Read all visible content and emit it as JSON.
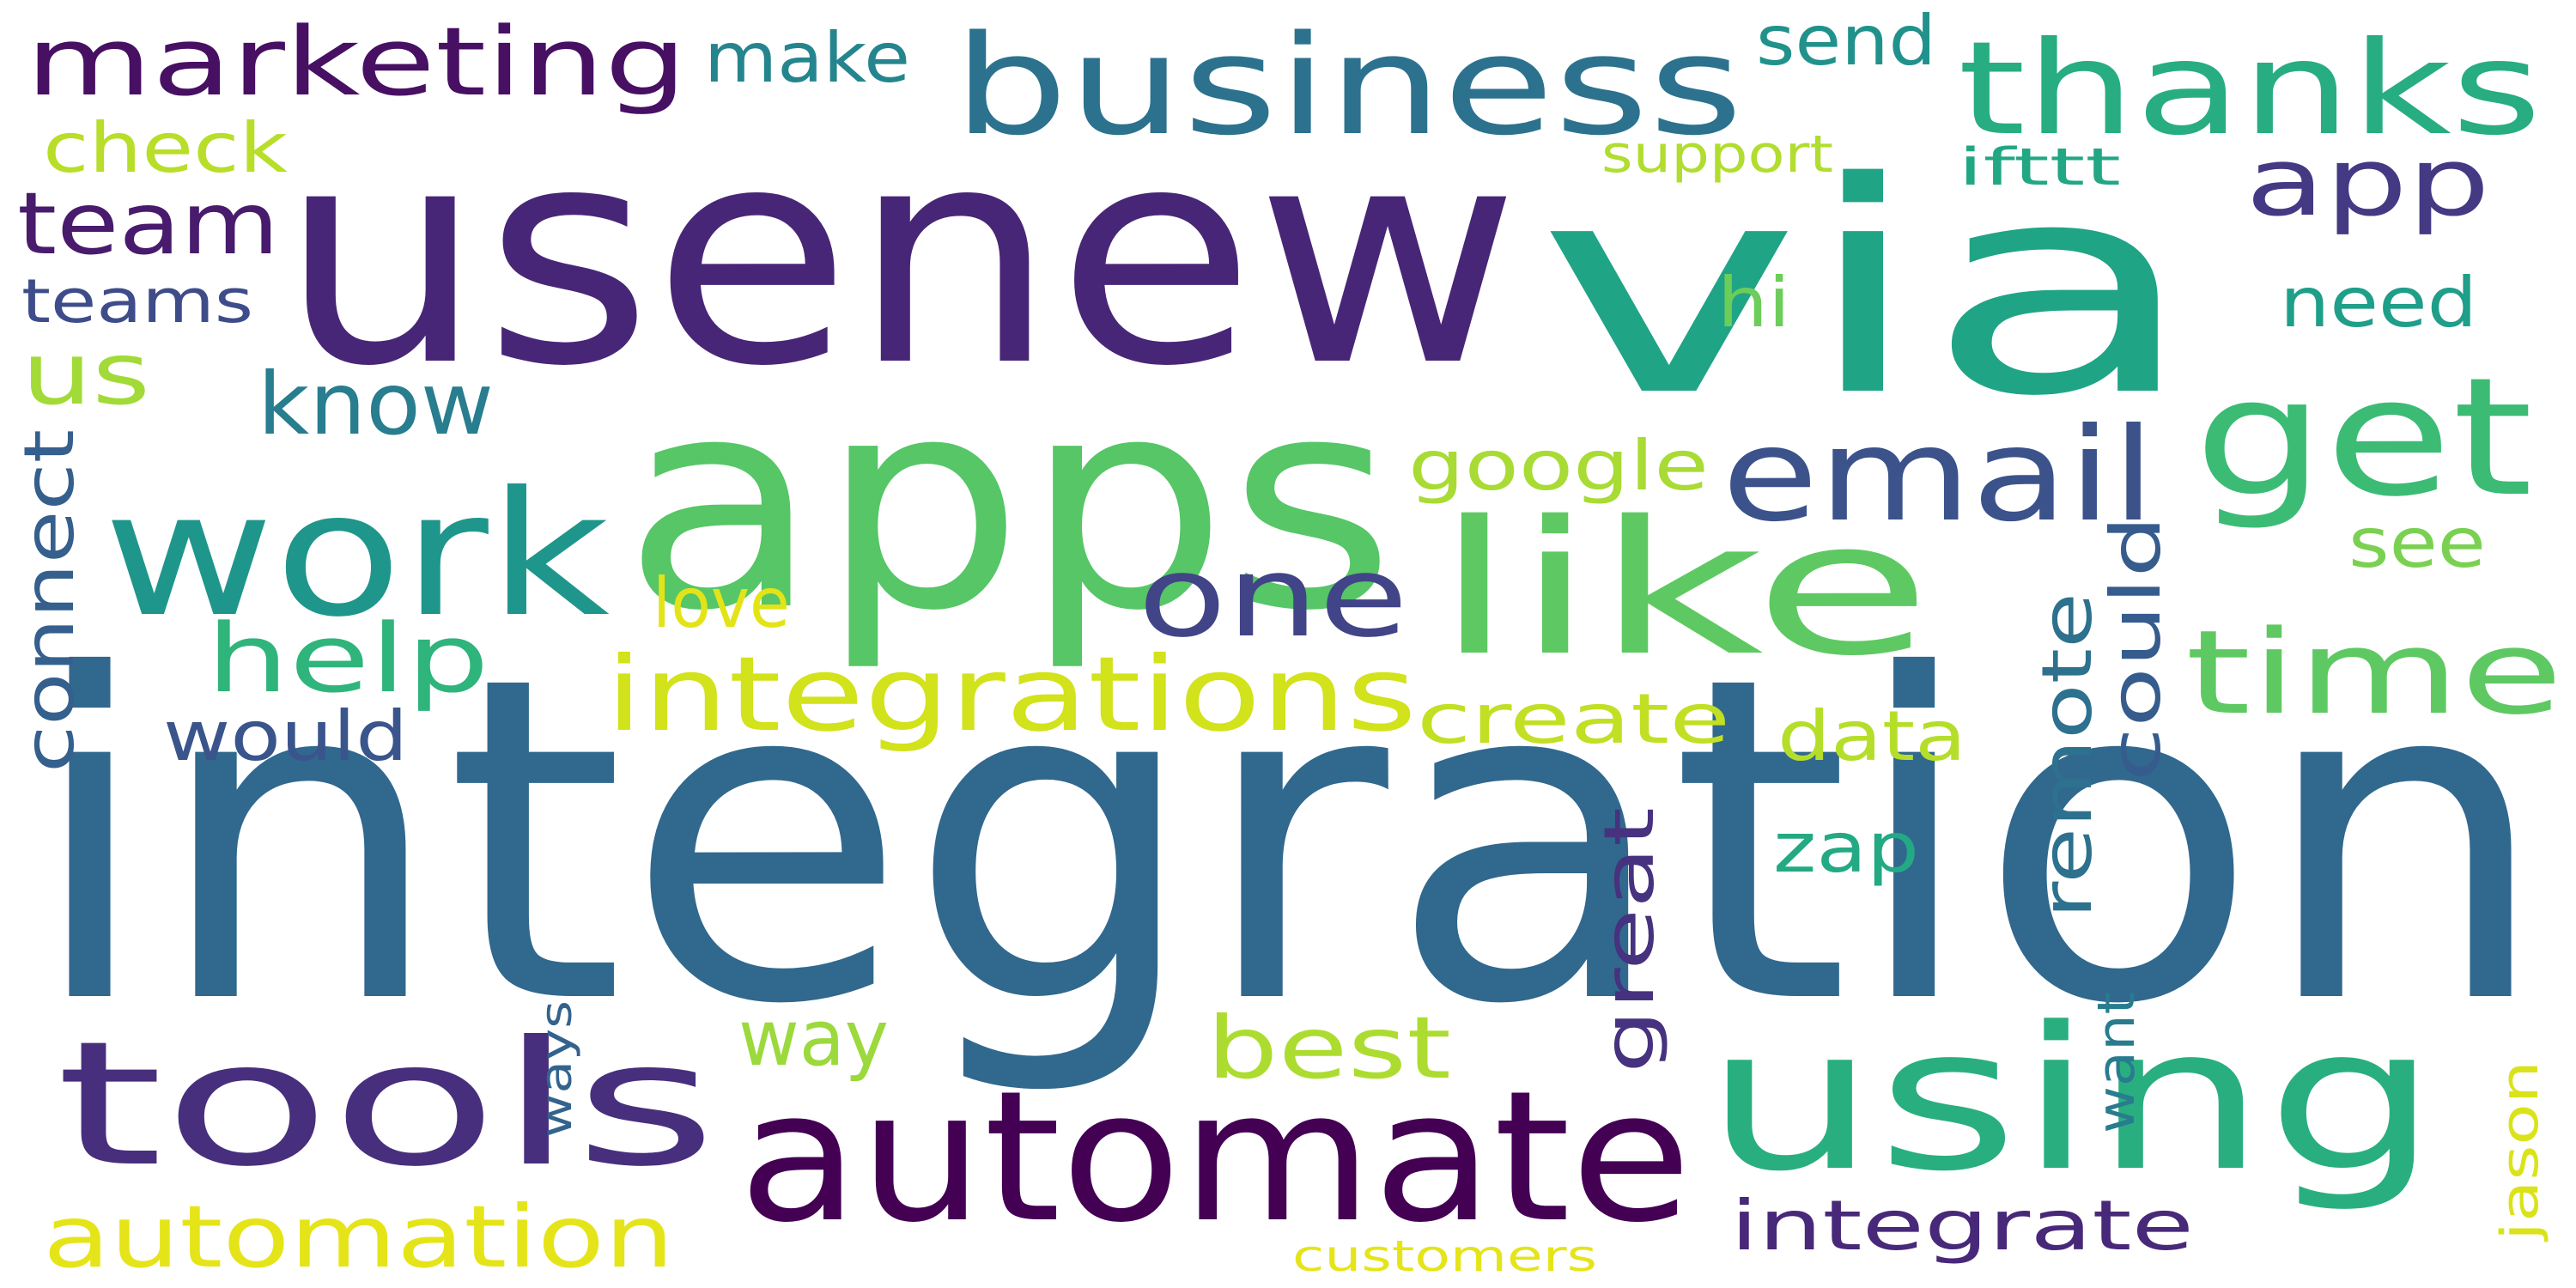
{
  "words": [
    {
      "id": "integration",
      "text": "integration",
      "color": "#31688e"
    },
    {
      "id": "usenew",
      "text": "usenew",
      "color": "#482677"
    },
    {
      "id": "via",
      "text": "via",
      "color": "#20a486"
    },
    {
      "id": "apps",
      "text": "apps",
      "color": "#56c667"
    },
    {
      "id": "using",
      "text": "using",
      "color": "#29af7f"
    },
    {
      "id": "automate",
      "text": "automate",
      "color": "#440154"
    },
    {
      "id": "tools",
      "text": "tools",
      "color": "#472f7d"
    },
    {
      "id": "like",
      "text": "like",
      "color": "#5ec962"
    },
    {
      "id": "work",
      "text": "work",
      "color": "#1f968b"
    },
    {
      "id": "get",
      "text": "get",
      "color": "#3cbb75"
    },
    {
      "id": "business",
      "text": "business",
      "color": "#2c728e"
    },
    {
      "id": "thanks",
      "text": "thanks",
      "color": "#27ad81"
    },
    {
      "id": "email",
      "text": "email",
      "color": "#3b528b"
    },
    {
      "id": "time",
      "text": "time",
      "color": "#5ec962"
    },
    {
      "id": "one",
      "text": "one",
      "color": "#414487"
    },
    {
      "id": "integrations",
      "text": "integrations",
      "color": "#d2e21b"
    },
    {
      "id": "marketing",
      "text": "marketing",
      "color": "#471063"
    },
    {
      "id": "app",
      "text": "app",
      "color": "#443983"
    },
    {
      "id": "automation",
      "text": "automation",
      "color": "#e5e419"
    },
    {
      "id": "integrate",
      "text": "integrate",
      "color": "#482878"
    },
    {
      "id": "best",
      "text": "best",
      "color": "#addc30"
    },
    {
      "id": "help",
      "text": "help",
      "color": "#2fb47c"
    },
    {
      "id": "team",
      "text": "team",
      "color": "#481b6d"
    },
    {
      "id": "know",
      "text": "know",
      "color": "#287d8e"
    },
    {
      "id": "us",
      "text": "us",
      "color": "#a2da37"
    },
    {
      "id": "connect",
      "text": "connect",
      "color": "#355f8d"
    },
    {
      "id": "google",
      "text": "google",
      "color": "#a8db34"
    },
    {
      "id": "create",
      "text": "create",
      "color": "#c2df23"
    },
    {
      "id": "data",
      "text": "data",
      "color": "#b5de2b"
    },
    {
      "id": "remote",
      "text": "remote",
      "color": "#2d718e"
    },
    {
      "id": "could",
      "text": "could",
      "color": "#365c8d"
    },
    {
      "id": "great",
      "text": "great",
      "color": "#46327e"
    },
    {
      "id": "zap",
      "text": "zap",
      "color": "#23a983"
    },
    {
      "id": "way",
      "text": "way",
      "color": "#9bd93c"
    },
    {
      "id": "would",
      "text": "would",
      "color": "#3a548c"
    },
    {
      "id": "love",
      "text": "love",
      "color": "#e2e418"
    },
    {
      "id": "need",
      "text": "need",
      "color": "#1f9e89"
    },
    {
      "id": "see",
      "text": "see",
      "color": "#7ad151"
    },
    {
      "id": "hi",
      "text": "hi",
      "color": "#6ccd5a"
    },
    {
      "id": "check",
      "text": "check",
      "color": "#b8de29"
    },
    {
      "id": "teams",
      "text": "teams",
      "color": "#3e4c8a"
    },
    {
      "id": "make",
      "text": "make",
      "color": "#25858e"
    },
    {
      "id": "send",
      "text": "send",
      "color": "#21918c"
    },
    {
      "id": "support",
      "text": "support",
      "color": "#b0dd2f"
    },
    {
      "id": "ifttt",
      "text": "ifttt",
      "color": "#22a785"
    },
    {
      "id": "want",
      "text": "want",
      "color": "#287c8e"
    },
    {
      "id": "jason",
      "text": "jason",
      "color": "#dae319"
    },
    {
      "id": "ways",
      "text": "ways",
      "color": "#33638d"
    },
    {
      "id": "customers",
      "text": "customers",
      "color": "#e5e419"
    }
  ]
}
